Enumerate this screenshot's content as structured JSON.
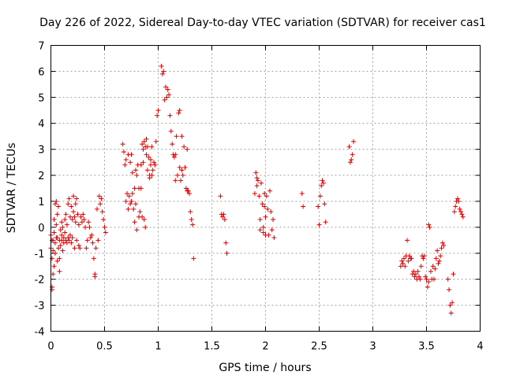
{
  "chart_data": {
    "type": "scatter",
    "title": "Day 226 of 2022, Sidereal Day-to-day VTEC variation (SDTVAR) for receiver cas1",
    "xlabel": "GPS time / hours",
    "ylabel": "SDTVAR / TECUs",
    "xlim": [
      0,
      4
    ],
    "ylim": [
      -4,
      7
    ],
    "xticks": [
      0,
      0.5,
      1,
      1.5,
      2,
      2.5,
      3,
      3.5,
      4
    ],
    "xtick_labels": [
      "0",
      "0.5",
      "1",
      "1.5",
      "2",
      "2.5",
      "3",
      "3.5",
      "4"
    ],
    "yticks": [
      -4,
      -3,
      -2,
      -1,
      0,
      1,
      2,
      3,
      4,
      5,
      6,
      7
    ],
    "ytick_labels": [
      "-4",
      "-3",
      "-2",
      "-1",
      "0",
      "1",
      "2",
      "3",
      "4",
      "5",
      "6",
      "7"
    ],
    "grid": true,
    "marker": "+",
    "marker_color": "#e00000",
    "series": [
      {
        "name": "SDTVAR",
        "points": [
          [
            0.0,
            -0.3
          ],
          [
            0.0,
            -0.8
          ],
          [
            0.01,
            -1.2
          ],
          [
            0.01,
            -2.3
          ],
          [
            0.01,
            -2.4
          ],
          [
            0.01,
            -0.5
          ],
          [
            0.02,
            -1.8
          ],
          [
            0.02,
            -0.9
          ],
          [
            0.02,
            -0.5
          ],
          [
            0.03,
            -0.2
          ],
          [
            0.03,
            0.3
          ],
          [
            0.03,
            -1.5
          ],
          [
            0.04,
            -1.0
          ],
          [
            0.04,
            -0.6
          ],
          [
            0.04,
            0.9
          ],
          [
            0.05,
            -0.4
          ],
          [
            0.05,
            0.1
          ],
          [
            0.05,
            1.0
          ],
          [
            0.06,
            -1.3
          ],
          [
            0.06,
            -0.4
          ],
          [
            0.06,
            0.5
          ],
          [
            0.07,
            0.8
          ],
          [
            0.07,
            -0.8
          ],
          [
            0.08,
            -0.5
          ],
          [
            0.08,
            -1.2
          ],
          [
            0.08,
            -1.7
          ],
          [
            0.09,
            -0.1
          ],
          [
            0.09,
            -0.7
          ],
          [
            0.1,
            -0.3
          ],
          [
            0.1,
            0.2
          ],
          [
            0.1,
            -0.5
          ],
          [
            0.11,
            -0.9
          ],
          [
            0.11,
            0.0
          ],
          [
            0.12,
            -0.4
          ],
          [
            0.12,
            -0.6
          ],
          [
            0.13,
            -0.2
          ],
          [
            0.13,
            0.3
          ],
          [
            0.14,
            -0.5
          ],
          [
            0.14,
            0.5
          ],
          [
            0.15,
            -0.6
          ],
          [
            0.15,
            0.1
          ],
          [
            0.16,
            -0.4
          ],
          [
            0.16,
            0.9
          ],
          [
            0.17,
            -0.5
          ],
          [
            0.17,
            1.1
          ],
          [
            0.18,
            -0.3
          ],
          [
            0.18,
            0.4
          ],
          [
            0.19,
            -0.6
          ],
          [
            0.19,
            0.8
          ],
          [
            0.2,
            -0.4
          ],
          [
            0.2,
            0.3
          ],
          [
            0.21,
            1.2
          ],
          [
            0.21,
            0.6
          ],
          [
            0.22,
            -0.8
          ],
          [
            0.22,
            0.4
          ],
          [
            0.23,
            0.9
          ],
          [
            0.23,
            0.2
          ],
          [
            0.24,
            -0.5
          ],
          [
            0.24,
            1.1
          ],
          [
            0.25,
            0.5
          ],
          [
            0.26,
            -0.7
          ],
          [
            0.26,
            0.1
          ],
          [
            0.27,
            -0.8
          ],
          [
            0.28,
            0.4
          ],
          [
            0.29,
            0.2
          ],
          [
            0.3,
            0.5
          ],
          [
            0.31,
            0.3
          ],
          [
            0.32,
            0.0
          ],
          [
            0.33,
            -0.8
          ],
          [
            0.34,
            -0.5
          ],
          [
            0.35,
            0.2
          ],
          [
            0.36,
            0.0
          ],
          [
            0.37,
            -0.4
          ],
          [
            0.38,
            -0.3
          ],
          [
            0.39,
            -0.6
          ],
          [
            0.4,
            -1.2
          ],
          [
            0.41,
            -1.9
          ],
          [
            0.41,
            -1.8
          ],
          [
            0.42,
            -0.8
          ],
          [
            0.43,
            0.7
          ],
          [
            0.44,
            -0.5
          ],
          [
            0.45,
            1.2
          ],
          [
            0.46,
            0.9
          ],
          [
            0.47,
            1.1
          ],
          [
            0.48,
            0.6
          ],
          [
            0.49,
            0.3
          ],
          [
            0.5,
            0.0
          ],
          [
            0.51,
            -0.2
          ],
          [
            0.67,
            3.2
          ],
          [
            0.68,
            2.9
          ],
          [
            0.69,
            2.4
          ],
          [
            0.7,
            1.0
          ],
          [
            0.7,
            2.6
          ],
          [
            0.71,
            1.3
          ],
          [
            0.72,
            2.8
          ],
          [
            0.72,
            0.7
          ],
          [
            0.73,
            1.2
          ],
          [
            0.74,
            2.5
          ],
          [
            0.74,
            0.9
          ],
          [
            0.75,
            2.8
          ],
          [
            0.75,
            1.0
          ],
          [
            0.76,
            2.1
          ],
          [
            0.76,
            1.3
          ],
          [
            0.77,
            0.7
          ],
          [
            0.78,
            1.5
          ],
          [
            0.78,
            0.2
          ],
          [
            0.79,
            2.2
          ],
          [
            0.79,
            0.9
          ],
          [
            0.8,
            2.0
          ],
          [
            0.8,
            -0.1
          ],
          [
            0.81,
            2.4
          ],
          [
            0.82,
            1.5
          ],
          [
            0.82,
            0.4
          ],
          [
            0.83,
            0.6
          ],
          [
            0.84,
            2.4
          ],
          [
            0.84,
            1.5
          ],
          [
            0.85,
            3.2
          ],
          [
            0.85,
            0.4
          ],
          [
            0.86,
            3.0
          ],
          [
            0.86,
            2.5
          ],
          [
            0.87,
            3.3
          ],
          [
            0.87,
            0.3
          ],
          [
            0.88,
            3.1
          ],
          [
            0.88,
            0.0
          ],
          [
            0.89,
            2.8
          ],
          [
            0.89,
            3.4
          ],
          [
            0.9,
            3.1
          ],
          [
            0.9,
            2.2
          ],
          [
            0.91,
            2.7
          ],
          [
            0.92,
            2.0
          ],
          [
            0.92,
            1.9
          ],
          [
            0.93,
            2.4
          ],
          [
            0.93,
            2.6
          ],
          [
            0.94,
            3.1
          ],
          [
            0.94,
            2.0
          ],
          [
            0.95,
            2.2
          ],
          [
            0.96,
            2.5
          ],
          [
            0.97,
            2.4
          ],
          [
            0.98,
            3.3
          ],
          [
            0.99,
            4.3
          ],
          [
            1.0,
            4.5
          ],
          [
            1.03,
            6.2
          ],
          [
            1.04,
            5.9
          ],
          [
            1.05,
            6.0
          ],
          [
            1.06,
            4.9
          ],
          [
            1.07,
            5.4
          ],
          [
            1.08,
            5.0
          ],
          [
            1.09,
            5.3
          ],
          [
            1.1,
            5.1
          ],
          [
            1.11,
            4.3
          ],
          [
            1.12,
            3.7
          ],
          [
            1.13,
            3.2
          ],
          [
            1.14,
            2.8
          ],
          [
            1.15,
            2.7
          ],
          [
            1.16,
            2.8
          ],
          [
            1.16,
            1.8
          ],
          [
            1.17,
            3.5
          ],
          [
            1.18,
            2.0
          ],
          [
            1.19,
            4.4
          ],
          [
            1.2,
            4.5
          ],
          [
            1.2,
            2.3
          ],
          [
            1.21,
            1.8
          ],
          [
            1.22,
            3.5
          ],
          [
            1.22,
            2.2
          ],
          [
            1.23,
            2.0
          ],
          [
            1.24,
            3.1
          ],
          [
            1.25,
            2.3
          ],
          [
            1.26,
            1.5
          ],
          [
            1.27,
            1.4
          ],
          [
            1.27,
            3.0
          ],
          [
            1.28,
            1.4
          ],
          [
            1.29,
            1.3
          ],
          [
            1.3,
            0.6
          ],
          [
            1.31,
            0.3
          ],
          [
            1.32,
            0.1
          ],
          [
            1.33,
            -1.2
          ],
          [
            1.58,
            1.2
          ],
          [
            1.59,
            0.5
          ],
          [
            1.6,
            0.4
          ],
          [
            1.61,
            0.5
          ],
          [
            1.62,
            0.3
          ],
          [
            1.63,
            -0.6
          ],
          [
            1.64,
            -1.0
          ],
          [
            1.9,
            1.3
          ],
          [
            1.91,
            2.1
          ],
          [
            1.92,
            1.6
          ],
          [
            1.92,
            1.9
          ],
          [
            1.93,
            1.8
          ],
          [
            1.94,
            1.2
          ],
          [
            1.95,
            0.3
          ],
          [
            1.95,
            -0.1
          ],
          [
            1.96,
            1.7
          ],
          [
            1.97,
            0.9
          ],
          [
            1.98,
            0.0
          ],
          [
            1.98,
            -0.2
          ],
          [
            1.99,
            1.3
          ],
          [
            1.99,
            0.8
          ],
          [
            2.0,
            0.4
          ],
          [
            2.0,
            -0.3
          ],
          [
            2.01,
            1.2
          ],
          [
            2.02,
            0.7
          ],
          [
            2.03,
            -0.3
          ],
          [
            2.04,
            1.4
          ],
          [
            2.05,
            0.6
          ],
          [
            2.06,
            -0.1
          ],
          [
            2.07,
            0.3
          ],
          [
            2.08,
            -0.4
          ],
          [
            2.34,
            1.3
          ],
          [
            2.35,
            0.8
          ],
          [
            2.49,
            0.8
          ],
          [
            2.5,
            0.1
          ],
          [
            2.51,
            1.2
          ],
          [
            2.52,
            1.6
          ],
          [
            2.53,
            1.8
          ],
          [
            2.54,
            1.7
          ],
          [
            2.55,
            0.9
          ],
          [
            2.56,
            0.2
          ],
          [
            2.78,
            3.1
          ],
          [
            2.79,
            2.5
          ],
          [
            2.8,
            2.6
          ],
          [
            2.81,
            2.8
          ],
          [
            2.82,
            3.3
          ],
          [
            3.26,
            -1.5
          ],
          [
            3.27,
            -1.3
          ],
          [
            3.28,
            -1.4
          ],
          [
            3.29,
            -1.2
          ],
          [
            3.3,
            -1.5
          ],
          [
            3.31,
            -1.1
          ],
          [
            3.32,
            -0.5
          ],
          [
            3.33,
            -1.3
          ],
          [
            3.34,
            -1.1
          ],
          [
            3.35,
            -1.2
          ],
          [
            3.36,
            -1.2
          ],
          [
            3.37,
            -1.8
          ],
          [
            3.38,
            -1.7
          ],
          [
            3.39,
            -1.9
          ],
          [
            3.4,
            -1.8
          ],
          [
            3.41,
            -2.0
          ],
          [
            3.42,
            -1.7
          ],
          [
            3.43,
            -1.9
          ],
          [
            3.44,
            -2.0
          ],
          [
            3.45,
            -1.5
          ],
          [
            3.46,
            -1.1
          ],
          [
            3.47,
            -1.2
          ],
          [
            3.48,
            -1.1
          ],
          [
            3.49,
            -1.9
          ],
          [
            3.5,
            -2.0
          ],
          [
            3.51,
            -2.3
          ],
          [
            3.52,
            -2.1
          ],
          [
            3.52,
            0.1
          ],
          [
            3.53,
            0.0
          ],
          [
            3.54,
            -1.7
          ],
          [
            3.55,
            -2.0
          ],
          [
            3.56,
            -1.5
          ],
          [
            3.57,
            -2.0
          ],
          [
            3.58,
            -1.6
          ],
          [
            3.59,
            -1.2
          ],
          [
            3.6,
            -0.9
          ],
          [
            3.61,
            -1.4
          ],
          [
            3.62,
            -1.3
          ],
          [
            3.63,
            -1.1
          ],
          [
            3.64,
            -0.8
          ],
          [
            3.65,
            -0.6
          ],
          [
            3.66,
            -0.7
          ],
          [
            3.7,
            -2.0
          ],
          [
            3.71,
            -2.4
          ],
          [
            3.72,
            -3.0
          ],
          [
            3.73,
            -3.3
          ],
          [
            3.74,
            -2.9
          ],
          [
            3.75,
            -1.8
          ],
          [
            3.76,
            0.6
          ],
          [
            3.77,
            0.8
          ],
          [
            3.78,
            1.0
          ],
          [
            3.79,
            1.1
          ],
          [
            3.8,
            1.0
          ],
          [
            3.81,
            0.7
          ],
          [
            3.82,
            0.6
          ],
          [
            3.83,
            0.5
          ],
          [
            3.84,
            0.4
          ]
        ]
      }
    ]
  }
}
